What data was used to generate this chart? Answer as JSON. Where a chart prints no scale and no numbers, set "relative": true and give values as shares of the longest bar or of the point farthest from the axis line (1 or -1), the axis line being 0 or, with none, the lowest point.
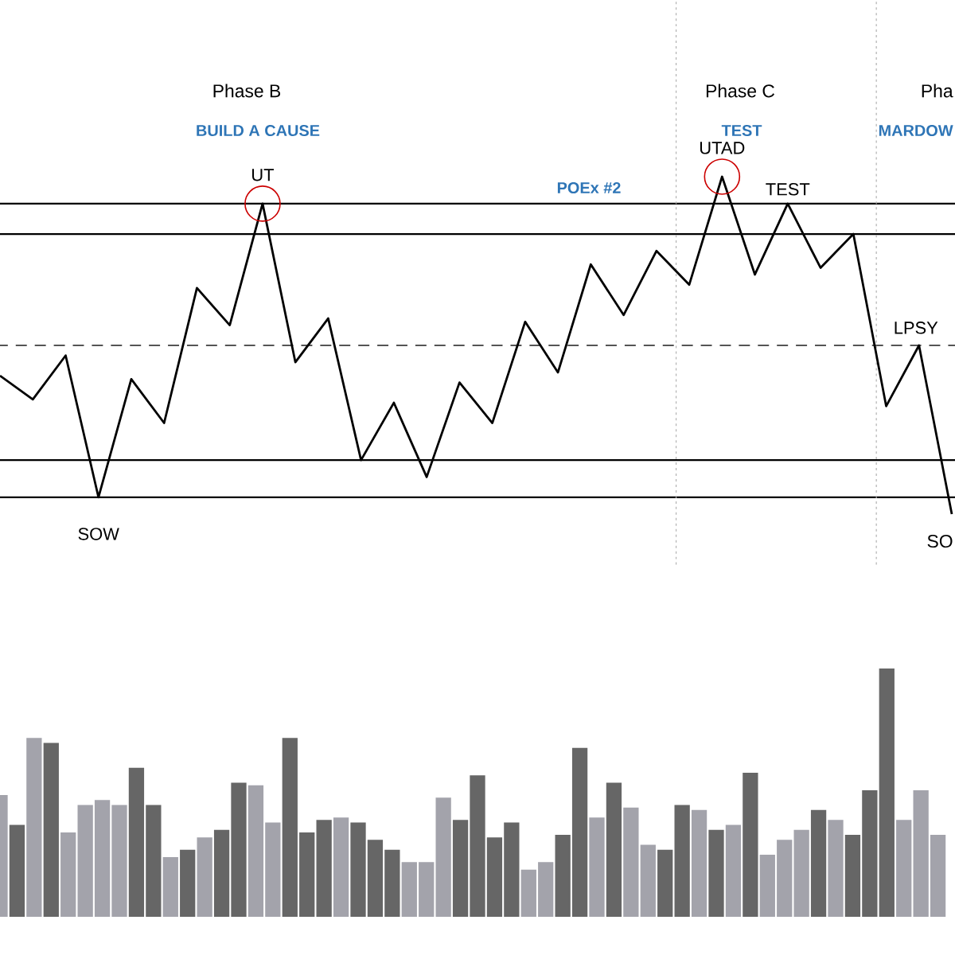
{
  "chart_data": [
    {
      "type": "line",
      "relative": true,
      "color": "#000000",
      "categories": [
        null,
        null,
        null,
        null,
        null,
        null,
        null,
        null,
        null,
        null,
        null,
        null,
        null,
        null,
        null,
        null,
        null,
        null,
        null,
        null,
        null,
        null,
        null,
        null,
        null,
        null,
        null,
        null,
        null,
        null
      ],
      "values": [
        0.41,
        0.34,
        0.47,
        0.05,
        0.4,
        0.27,
        0.67,
        0.56,
        0.92,
        0.45,
        0.58,
        0.16,
        0.33,
        0.11,
        0.39,
        0.27,
        0.57,
        0.42,
        0.74,
        0.59,
        0.78,
        0.68,
        1,
        0.71,
        0.92,
        0.73,
        0.83,
        0.32,
        0.5,
        0
      ],
      "ref_lines": [
        {
          "axis": "y",
          "value": 0.92,
          "color": "#000000",
          "line_style": "solid"
        },
        {
          "axis": "y",
          "value": 0.83,
          "color": "#000000",
          "line_style": "solid"
        },
        {
          "axis": "y",
          "value": 0.5,
          "color": "#555555",
          "line_style": "dashed"
        },
        {
          "axis": "y",
          "value": 0.16,
          "color": "#000000",
          "line_style": "solid"
        },
        {
          "axis": "y",
          "value": 0.05,
          "color": "#000000",
          "line_style": "solid"
        }
      ],
      "annotations": [
        "Phase B",
        "BUILD A CAUSE",
        "POEx #2",
        "Phase C",
        "TEST",
        "Pha",
        "MARDOW",
        "SO",
        {
          "text": "SOW",
          "y": 0.05
        },
        {
          "text": "UT",
          "y": 0.92
        },
        {
          "text": "UTAD",
          "y": 1
        },
        {
          "text": "TEST",
          "y": 0.92
        },
        {
          "text": "LPSY",
          "y": 0.5
        }
      ]
    },
    {
      "type": "bar",
      "relative": true,
      "categories": [
        null,
        null,
        null,
        null,
        null,
        null,
        null,
        null,
        null,
        null,
        null,
        null,
        null,
        null,
        null,
        null,
        null,
        null,
        null,
        null,
        null,
        null,
        null,
        null,
        null,
        null,
        null,
        null,
        null,
        null,
        null,
        null,
        null,
        null,
        null,
        null,
        null,
        null,
        null,
        null,
        null,
        null,
        null,
        null,
        null,
        null,
        null,
        null,
        null,
        null,
        null,
        null,
        null,
        null,
        null,
        null
      ],
      "values": [
        0.49,
        0.37,
        0.72,
        0.7,
        0.34,
        0.45,
        0.47,
        0.45,
        0.6,
        0.45,
        0.24,
        0.27,
        0.32,
        0.35,
        0.54,
        0.53,
        0.38,
        0.72,
        0.34,
        0.39,
        0.4,
        0.38,
        0.31,
        0.27,
        0.22,
        0.22,
        0.48,
        0.39,
        0.57,
        0.32,
        0.38,
        0.19,
        0.22,
        0.33,
        0.68,
        0.4,
        0.54,
        0.44,
        0.29,
        0.27,
        0.45,
        0.43,
        0.35,
        0.37,
        0.58,
        0.25,
        0.31,
        0.35,
        0.43,
        0.39,
        0.33,
        0.51,
        1,
        0.39,
        0.51,
        0.33
      ],
      "colors": [
        "#a3a3ab",
        "#666666",
        "#a3a3ab",
        "#666666",
        "#a3a3ab",
        "#a3a3ab",
        "#a3a3ab",
        "#a3a3ab",
        "#666666",
        "#666666",
        "#a3a3ab",
        "#666666",
        "#a3a3ab",
        "#666666",
        "#666666",
        "#a3a3ab",
        "#a3a3ab",
        "#666666",
        "#666666",
        "#666666",
        "#a3a3ab",
        "#666666",
        "#666666",
        "#666666",
        "#a3a3ab",
        "#a3a3ab",
        "#a3a3ab",
        "#666666",
        "#666666",
        "#666666",
        "#666666",
        "#a3a3ab",
        "#a3a3ab",
        "#666666",
        "#666666",
        "#a3a3ab",
        "#666666",
        "#a3a3ab",
        "#a3a3ab",
        "#666666",
        "#666666",
        "#a3a3ab",
        "#666666",
        "#a3a3ab",
        "#666666",
        "#a3a3ab",
        "#a3a3ab",
        "#a3a3ab",
        "#666666",
        "#a3a3ab",
        "#666666",
        "#666666",
        "#666666",
        "#a3a3ab",
        "#a3a3ab",
        "#a3a3ab"
      ]
    }
  ]
}
